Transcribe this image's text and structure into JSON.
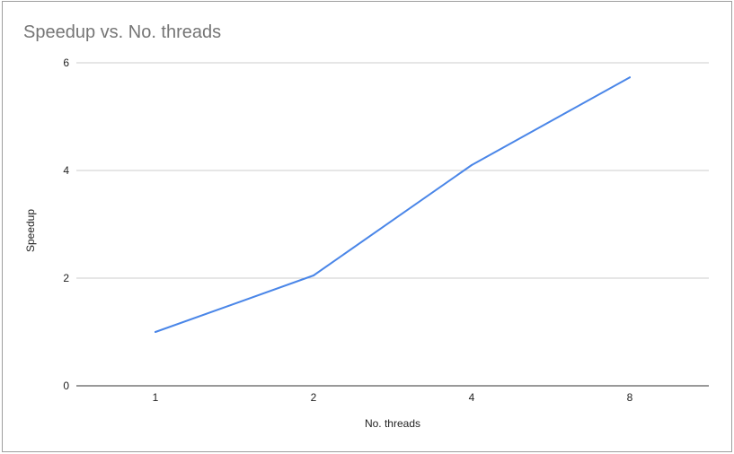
{
  "chart_data": {
    "type": "line",
    "title": "Speedup vs. No. threads",
    "xlabel": "No. threads",
    "ylabel": "Speedup",
    "categories": [
      "1",
      "2",
      "4",
      "8"
    ],
    "series": [
      {
        "values": [
          1.0,
          2.05,
          4.1,
          5.73
        ]
      }
    ],
    "ylim": [
      0,
      6
    ],
    "yticks": [
      "0",
      "2",
      "4",
      "6"
    ],
    "grid": true,
    "legend": "none",
    "colors": {
      "series": "#4a86e8",
      "grid": "#cccccc",
      "axis": "#333333",
      "title": "#757575",
      "label": "#222222"
    }
  }
}
